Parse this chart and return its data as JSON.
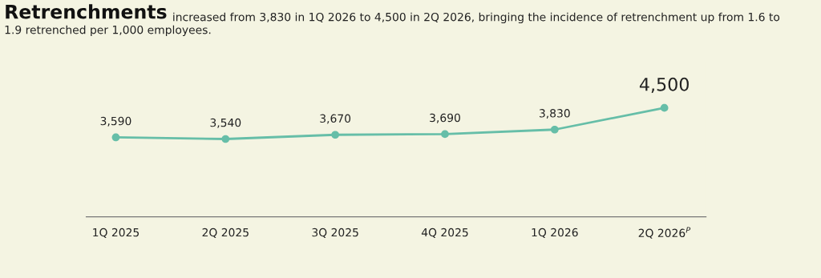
{
  "chart_data": {
    "type": "line",
    "title": "Retrenchments",
    "subtitle": "increased from 3,830 in 1Q 2026 to 4,500 in 2Q 2026, bringing the incidence of retrenchment up from 1.6 to 1.9 retrenched per 1,000 employees.",
    "categories": [
      "1Q 2025",
      "2Q 2025",
      "3Q 2025",
      "4Q 2025",
      "1Q 2026",
      "2Q 2026$^{P}$"
    ],
    "series": [
      {
        "color": "#66bea8",
        "values": [
          3590,
          3540,
          3670,
          3690,
          3830,
          4500
        ],
        "value_labels": [
          "3,590",
          "3,540",
          "3,670",
          "3,690",
          "3,830",
          "4,500"
        ]
      }
    ],
    "marker": "circle",
    "line_style": "solid",
    "grid": false,
    "legend": false,
    "tick_labels": "x"
  }
}
